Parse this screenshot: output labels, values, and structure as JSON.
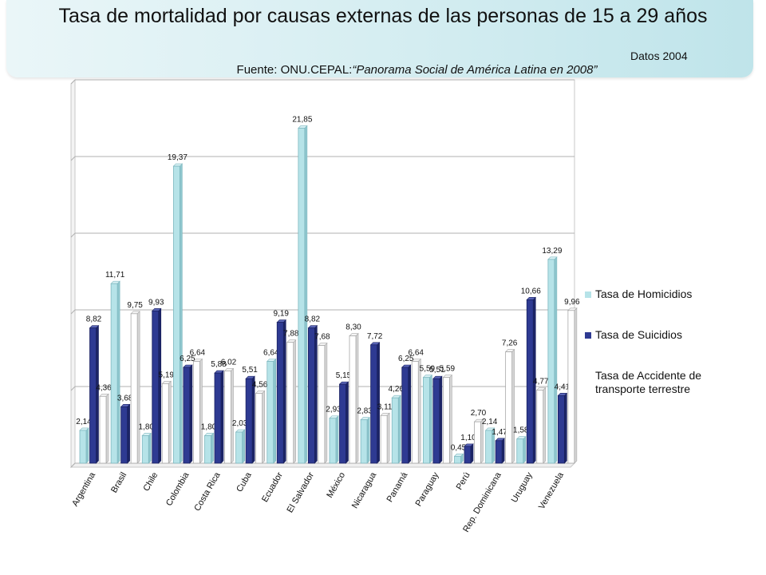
{
  "header": {
    "title": "Tasa de mortalidad por causas externas de las personas de 15 a 29 años",
    "datos": "Datos 2004",
    "fuente_prefix": "Fuente: ONU.CEPAL:",
    "fuente_italic": "“Panorama Social de América Latina en 2008”"
  },
  "colors": {
    "homicidios": "#b6e3e8",
    "suicidios": "#2e3a92",
    "accidentes": "#ffffff"
  },
  "chart_data": {
    "type": "bar",
    "categories": [
      "Argentina",
      "Brasil",
      "Chile",
      "Colombia",
      "Costa Rica",
      "Cuba",
      "Ecuador",
      "El Salvador",
      "México",
      "Nicaragua",
      "Panamá",
      "Paraguay",
      "Perú",
      "Rep. Dominicana",
      "Uruguay",
      "Venezuela"
    ],
    "series": [
      {
        "name": "Tasa de Homicidios",
        "values": [
          2.14,
          11.71,
          1.8,
          19.37,
          1.8,
          2.03,
          6.64,
          21.85,
          2.93,
          2.83,
          4.26,
          5.59,
          0.45,
          2.14,
          1.58,
          13.29
        ],
        "labels": [
          "2,14",
          "11,71",
          "1,80",
          "19,37",
          "1,80",
          "2,03",
          "6,64",
          "21,85",
          "2,93",
          "2,83",
          "4,26",
          "5,59",
          "0,45",
          "2,14",
          "1,58",
          "13,29"
        ]
      },
      {
        "name": "Tasa de Suicidios",
        "values": [
          8.82,
          3.68,
          9.93,
          6.25,
          5.88,
          5.51,
          9.19,
          8.82,
          5.15,
          7.72,
          6.25,
          5.51,
          1.1,
          1.47,
          10.66,
          4.41
        ],
        "labels": [
          "8,82",
          "3,68",
          "9,93",
          "6,25",
          "5,88",
          "5,51",
          "9,19",
          "8,82",
          "5,15",
          "7,72",
          "6,25",
          "5,51",
          "1,10",
          "1,47",
          "10,66",
          "4,41"
        ]
      },
      {
        "name": "Tasa de Accidente de transporte terrestre",
        "values": [
          4.36,
          9.75,
          5.19,
          6.64,
          6.02,
          4.56,
          7.88,
          7.68,
          8.3,
          3.11,
          6.64,
          5.59,
          2.7,
          7.26,
          4.77,
          9.96
        ],
        "labels": [
          "4,36",
          "9,75",
          "5,19",
          "6,64",
          "6,02",
          "4,56",
          "7,88",
          "7,68",
          "8,30",
          "3,11",
          "6,64",
          "5,59",
          "2,70",
          "7,26",
          "4,77",
          "9,96"
        ]
      }
    ],
    "ylim": [
      0,
      25
    ],
    "gridlines": [
      0,
      5,
      10,
      15,
      20,
      25
    ],
    "grid": true,
    "legend": "right"
  }
}
